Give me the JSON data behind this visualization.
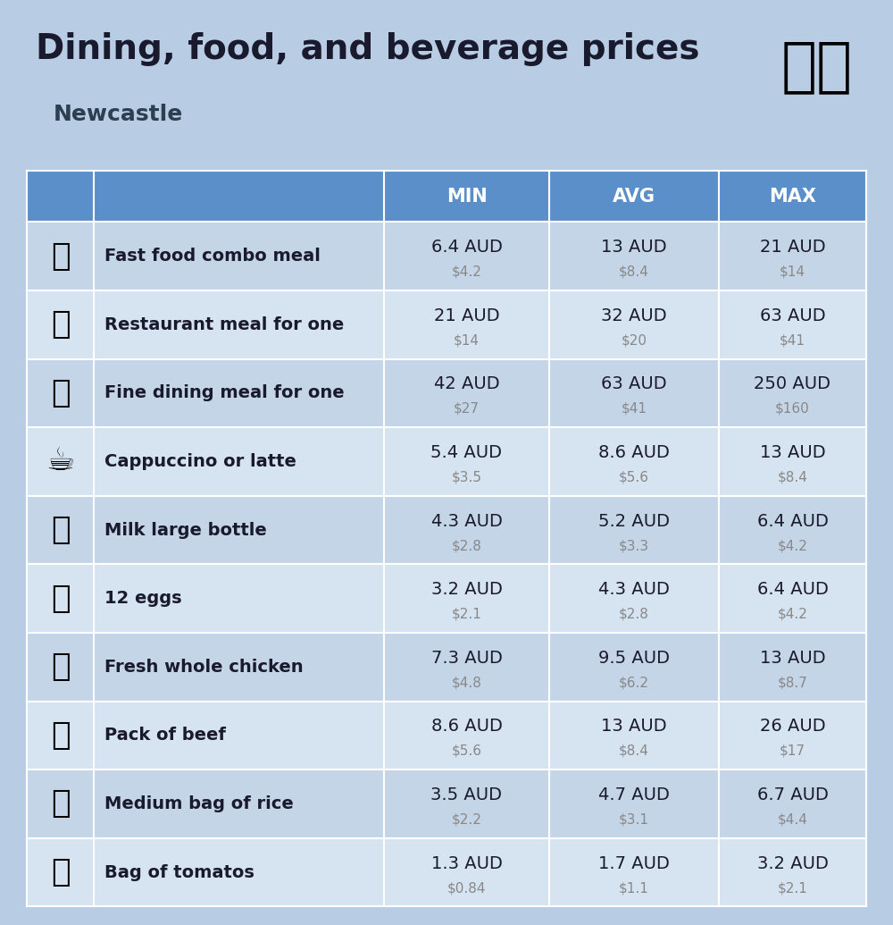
{
  "title": "Dining, food, and beverage prices",
  "subtitle": "Newcastle",
  "bg_color": "#b8cce4",
  "header_color": "#5b8fc9",
  "header_text_color": "#ffffff",
  "row_color_even": "#c5d5e8",
  "row_color_odd": "#d6e3f0",
  "columns": [
    "MIN",
    "AVG",
    "MAX"
  ],
  "rows": [
    {
      "name": "Fast food combo meal",
      "icon": "🍔",
      "min_aud": "6.4 AUD",
      "min_usd": "$4.2",
      "avg_aud": "13 AUD",
      "avg_usd": "$8.4",
      "max_aud": "21 AUD",
      "max_usd": "$14"
    },
    {
      "name": "Restaurant meal for one",
      "icon": "🍳",
      "min_aud": "21 AUD",
      "min_usd": "$14",
      "avg_aud": "32 AUD",
      "avg_usd": "$20",
      "max_aud": "63 AUD",
      "max_usd": "$41"
    },
    {
      "name": "Fine dining meal for one",
      "icon": "🍽",
      "min_aud": "42 AUD",
      "min_usd": "$27",
      "avg_aud": "63 AUD",
      "avg_usd": "$41",
      "max_aud": "250 AUD",
      "max_usd": "$160"
    },
    {
      "name": "Cappuccino or latte",
      "icon": "☕",
      "min_aud": "5.4 AUD",
      "min_usd": "$3.5",
      "avg_aud": "8.6 AUD",
      "avg_usd": "$5.6",
      "max_aud": "13 AUD",
      "max_usd": "$8.4"
    },
    {
      "name": "Milk large bottle",
      "icon": "🥛",
      "min_aud": "4.3 AUD",
      "min_usd": "$2.8",
      "avg_aud": "5.2 AUD",
      "avg_usd": "$3.3",
      "max_aud": "6.4 AUD",
      "max_usd": "$4.2"
    },
    {
      "name": "12 eggs",
      "icon": "🥚",
      "min_aud": "3.2 AUD",
      "min_usd": "$2.1",
      "avg_aud": "4.3 AUD",
      "avg_usd": "$2.8",
      "max_aud": "6.4 AUD",
      "max_usd": "$4.2"
    },
    {
      "name": "Fresh whole chicken",
      "icon": "🍗",
      "min_aud": "7.3 AUD",
      "min_usd": "$4.8",
      "avg_aud": "9.5 AUD",
      "avg_usd": "$6.2",
      "max_aud": "13 AUD",
      "max_usd": "$8.7"
    },
    {
      "name": "Pack of beef",
      "icon": "🥩",
      "min_aud": "8.6 AUD",
      "min_usd": "$5.6",
      "avg_aud": "13 AUD",
      "avg_usd": "$8.4",
      "max_aud": "26 AUD",
      "max_usd": "$17"
    },
    {
      "name": "Medium bag of rice",
      "icon": "🍚",
      "min_aud": "3.5 AUD",
      "min_usd": "$2.2",
      "avg_aud": "4.7 AUD",
      "avg_usd": "$3.1",
      "max_aud": "6.7 AUD",
      "max_usd": "$4.4"
    },
    {
      "name": "Bag of tomatos",
      "icon": "🍅",
      "min_aud": "1.3 AUD",
      "min_usd": "$0.84",
      "avg_aud": "1.7 AUD",
      "avg_usd": "$1.1",
      "max_aud": "3.2 AUD",
      "max_usd": "$2.1"
    }
  ],
  "icon_emojis": [
    "🍔",
    "🍳",
    "🍽",
    "☕",
    "🥛",
    "🥚",
    "🍗",
    "🥩",
    "🍚",
    "🍅"
  ],
  "title_fontsize": 28,
  "subtitle_fontsize": 18,
  "header_fontsize": 15,
  "row_name_fontsize": 14,
  "row_val_fontsize": 14,
  "row_subval_fontsize": 11
}
